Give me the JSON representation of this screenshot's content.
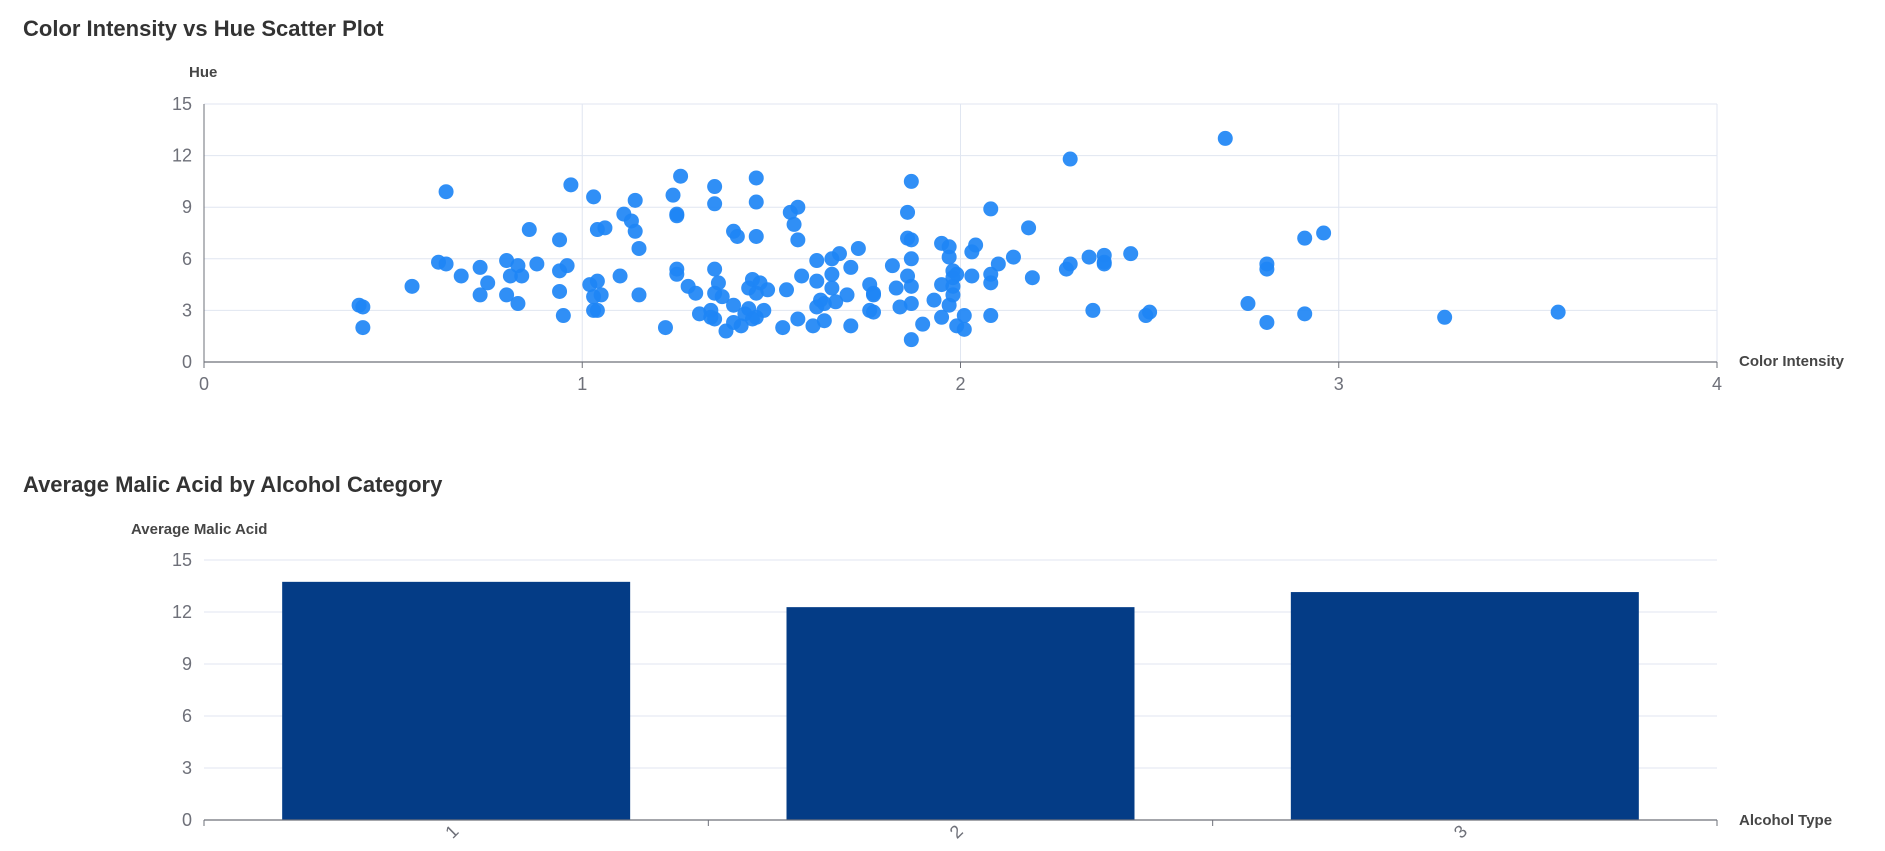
{
  "charts": {
    "scatter": {
      "title": "Color Intensity vs Hue Scatter Plot"
    },
    "bar": {
      "title": "Average Malic Acid by Alcohol Category"
    }
  },
  "colors": {
    "scatter_point": "#1e86f5",
    "bar_fill": "#043c86",
    "grid": "#e0e6f1",
    "axis_line": "#6e7079"
  },
  "chart_data": [
    {
      "type": "scatter",
      "title": "Color Intensity vs Hue Scatter Plot",
      "xlabel": "Color Intensity",
      "ylabel": "Hue",
      "xlim": [
        0,
        4
      ],
      "ylim": [
        0,
        15
      ],
      "xticks": [
        "0",
        "1",
        "2",
        "3",
        "4"
      ],
      "yticks": [
        "0",
        "3",
        "6",
        "9",
        "12",
        "15"
      ],
      "grid": true,
      "points": [
        [
          0.41,
          3.3
        ],
        [
          0.42,
          2.0
        ],
        [
          0.42,
          3.2
        ],
        [
          0.55,
          4.4
        ],
        [
          0.62,
          5.8
        ],
        [
          0.64,
          9.9
        ],
        [
          0.64,
          5.7
        ],
        [
          0.68,
          5.0
        ],
        [
          0.73,
          5.5
        ],
        [
          0.73,
          3.9
        ],
        [
          0.75,
          4.6
        ],
        [
          0.8,
          5.9
        ],
        [
          0.8,
          3.9
        ],
        [
          0.81,
          5.0
        ],
        [
          0.83,
          5.6
        ],
        [
          0.83,
          3.4
        ],
        [
          0.84,
          5.0
        ],
        [
          0.86,
          7.7
        ],
        [
          0.88,
          5.7
        ],
        [
          0.94,
          7.1
        ],
        [
          0.94,
          5.3
        ],
        [
          0.94,
          4.1
        ],
        [
          0.95,
          2.7
        ],
        [
          0.96,
          5.6
        ],
        [
          0.97,
          10.3
        ],
        [
          1.02,
          4.5
        ],
        [
          1.03,
          9.6
        ],
        [
          1.03,
          3.8
        ],
        [
          1.03,
          3.0
        ],
        [
          1.04,
          4.7
        ],
        [
          1.04,
          7.7
        ],
        [
          1.04,
          3.0
        ],
        [
          1.05,
          3.9
        ],
        [
          1.06,
          7.8
        ],
        [
          1.1,
          5.0
        ],
        [
          1.11,
          8.6
        ],
        [
          1.13,
          8.2
        ],
        [
          1.14,
          7.6
        ],
        [
          1.14,
          9.4
        ],
        [
          1.15,
          6.6
        ],
        [
          1.15,
          3.9
        ],
        [
          1.22,
          2.0
        ],
        [
          1.24,
          9.7
        ],
        [
          1.25,
          8.6
        ],
        [
          1.25,
          8.5
        ],
        [
          1.25,
          5.4
        ],
        [
          1.25,
          5.1
        ],
        [
          1.26,
          10.8
        ],
        [
          1.28,
          4.4
        ],
        [
          1.3,
          4.0
        ],
        [
          1.31,
          2.8
        ],
        [
          1.34,
          3.0
        ],
        [
          1.34,
          2.6
        ],
        [
          1.35,
          10.2
        ],
        [
          1.35,
          9.2
        ],
        [
          1.35,
          5.4
        ],
        [
          1.35,
          4.0
        ],
        [
          1.35,
          2.5
        ],
        [
          1.36,
          4.6
        ],
        [
          1.37,
          3.8
        ],
        [
          1.38,
          1.8
        ],
        [
          1.4,
          7.6
        ],
        [
          1.4,
          3.3
        ],
        [
          1.4,
          2.3
        ],
        [
          1.41,
          7.3
        ],
        [
          1.42,
          2.1
        ],
        [
          1.43,
          2.8
        ],
        [
          1.44,
          4.3
        ],
        [
          1.44,
          3.1
        ],
        [
          1.45,
          4.8
        ],
        [
          1.45,
          2.5
        ],
        [
          1.46,
          10.7
        ],
        [
          1.46,
          9.3
        ],
        [
          1.46,
          7.3
        ],
        [
          1.46,
          4.0
        ],
        [
          1.46,
          2.6
        ],
        [
          1.47,
          4.6
        ],
        [
          1.48,
          3.0
        ],
        [
          1.49,
          4.2
        ],
        [
          1.53,
          2.0
        ],
        [
          1.54,
          4.2
        ],
        [
          1.55,
          8.7
        ],
        [
          1.56,
          8.0
        ],
        [
          1.57,
          9.0
        ],
        [
          1.57,
          7.1
        ],
        [
          1.57,
          2.5
        ],
        [
          1.58,
          5.0
        ],
        [
          1.61,
          2.1
        ],
        [
          1.62,
          5.9
        ],
        [
          1.62,
          4.7
        ],
        [
          1.62,
          3.2
        ],
        [
          1.63,
          3.6
        ],
        [
          1.64,
          3.4
        ],
        [
          1.64,
          2.4
        ],
        [
          1.66,
          6.0
        ],
        [
          1.66,
          5.1
        ],
        [
          1.66,
          4.3
        ],
        [
          1.67,
          3.5
        ],
        [
          1.68,
          6.3
        ],
        [
          1.7,
          3.9
        ],
        [
          1.71,
          5.5
        ],
        [
          1.71,
          2.1
        ],
        [
          1.73,
          6.6
        ],
        [
          1.76,
          4.5
        ],
        [
          1.76,
          3.0
        ],
        [
          1.77,
          4.0
        ],
        [
          1.77,
          3.9
        ],
        [
          1.77,
          2.9
        ],
        [
          1.82,
          5.6
        ],
        [
          1.83,
          4.3
        ],
        [
          1.84,
          3.2
        ],
        [
          1.86,
          7.2
        ],
        [
          1.86,
          5.0
        ],
        [
          1.86,
          8.7
        ],
        [
          1.87,
          10.5
        ],
        [
          1.87,
          7.1
        ],
        [
          1.87,
          6.0
        ],
        [
          1.87,
          4.4
        ],
        [
          1.87,
          3.4
        ],
        [
          1.87,
          1.3
        ],
        [
          1.9,
          2.2
        ],
        [
          1.93,
          3.6
        ],
        [
          1.95,
          6.9
        ],
        [
          1.95,
          4.5
        ],
        [
          1.95,
          2.6
        ],
        [
          1.97,
          6.7
        ],
        [
          1.97,
          6.1
        ],
        [
          1.97,
          3.3
        ],
        [
          1.98,
          5.3
        ],
        [
          1.98,
          4.9
        ],
        [
          1.98,
          4.4
        ],
        [
          1.98,
          3.9
        ],
        [
          1.99,
          5.1
        ],
        [
          1.99,
          2.1
        ],
        [
          2.01,
          2.7
        ],
        [
          2.01,
          1.9
        ],
        [
          2.03,
          6.4
        ],
        [
          2.03,
          5.0
        ],
        [
          2.04,
          6.8
        ],
        [
          2.08,
          8.9
        ],
        [
          2.08,
          5.1
        ],
        [
          2.08,
          4.6
        ],
        [
          2.08,
          2.7
        ],
        [
          2.1,
          5.7
        ],
        [
          2.14,
          6.1
        ],
        [
          2.18,
          7.8
        ],
        [
          2.19,
          4.9
        ],
        [
          2.28,
          5.4
        ],
        [
          2.29,
          11.8
        ],
        [
          2.29,
          5.7
        ],
        [
          2.34,
          6.1
        ],
        [
          2.35,
          3.0
        ],
        [
          2.38,
          6.2
        ],
        [
          2.38,
          5.8
        ],
        [
          2.38,
          5.7
        ],
        [
          2.45,
          6.3
        ],
        [
          2.49,
          2.7
        ],
        [
          2.5,
          2.9
        ],
        [
          2.7,
          13.0
        ],
        [
          2.76,
          3.4
        ],
        [
          2.81,
          5.7
        ],
        [
          2.81,
          5.4
        ],
        [
          2.81,
          2.3
        ],
        [
          2.91,
          7.2
        ],
        [
          2.91,
          2.8
        ],
        [
          2.96,
          7.5
        ],
        [
          3.28,
          2.6
        ],
        [
          3.58,
          2.9
        ]
      ]
    },
    {
      "type": "bar",
      "title": "Average Malic Acid by Alcohol Category",
      "xlabel": "Alcohol Type",
      "ylabel": "Average Malic Acid",
      "categories": [
        "1",
        "2",
        "3"
      ],
      "values": [
        13.74,
        12.28,
        13.15
      ],
      "ylim": [
        0,
        15
      ],
      "yticks": [
        "0",
        "3",
        "6",
        "9",
        "12",
        "15"
      ],
      "grid": true
    }
  ]
}
